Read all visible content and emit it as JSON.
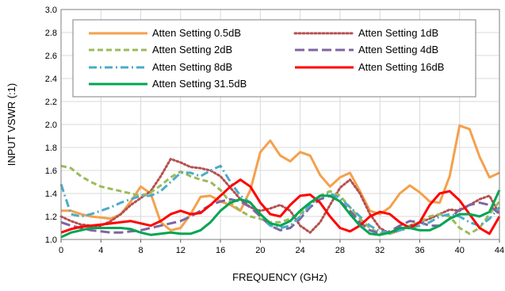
{
  "chart_data": {
    "type": "line",
    "title": "",
    "xlabel": "FREQUENCY (GHz)",
    "ylabel": "INPUT VSWR (:1)",
    "xlim": [
      0,
      44
    ],
    "ylim": [
      1.0,
      3.0
    ],
    "xticks": [
      "0",
      "4",
      "8",
      "12",
      "16",
      "20",
      "24",
      "28",
      "32",
      "36",
      "40",
      "44"
    ],
    "yticks": [
      "1.0",
      "1.2",
      "1.4",
      "1.6",
      "1.8",
      "2.0",
      "2.2",
      "2.4",
      "2.6",
      "2.8",
      "3.0"
    ],
    "grid": true,
    "legend_position": "top-center",
    "series": [
      {
        "name": "Atten Setting 0.5dB",
        "color": "#f5a04c",
        "dash": "solid",
        "x": [
          0,
          1,
          2,
          3,
          4,
          5,
          6,
          7,
          8,
          9,
          10,
          11,
          12,
          13,
          14,
          15,
          16,
          17,
          18,
          19,
          20,
          21,
          22,
          23,
          24,
          25,
          26,
          27,
          28,
          29,
          30,
          31,
          32,
          33,
          34,
          35,
          36,
          37,
          38,
          39,
          40,
          41,
          42,
          43,
          44
        ],
        "y": [
          1.25,
          1.25,
          1.22,
          1.2,
          1.19,
          1.18,
          1.22,
          1.33,
          1.46,
          1.4,
          1.15,
          1.08,
          1.1,
          1.22,
          1.37,
          1.38,
          1.33,
          1.3,
          1.25,
          1.43,
          1.76,
          1.86,
          1.73,
          1.68,
          1.76,
          1.73,
          1.56,
          1.46,
          1.54,
          1.58,
          1.42,
          1.25,
          1.22,
          1.28,
          1.4,
          1.47,
          1.41,
          1.33,
          1.32,
          1.55,
          1.99,
          1.96,
          1.72,
          1.54,
          1.58
        ]
      },
      {
        "name": "Atten Setting 1dB",
        "color": "#b5504f",
        "dash": "dotted",
        "x": [
          0,
          1,
          2,
          3,
          4,
          5,
          6,
          7,
          8,
          9,
          10,
          11,
          12,
          13,
          14,
          15,
          16,
          17,
          18,
          19,
          20,
          21,
          22,
          23,
          24,
          25,
          26,
          27,
          28,
          29,
          30,
          31,
          32,
          33,
          34,
          35,
          36,
          37,
          38,
          39,
          40,
          41,
          42,
          43,
          44
        ],
        "y": [
          1.2,
          1.16,
          1.13,
          1.12,
          1.12,
          1.16,
          1.22,
          1.3,
          1.36,
          1.42,
          1.55,
          1.7,
          1.67,
          1.63,
          1.62,
          1.6,
          1.55,
          1.45,
          1.35,
          1.28,
          1.25,
          1.27,
          1.3,
          1.25,
          1.12,
          1.06,
          1.15,
          1.3,
          1.45,
          1.52,
          1.4,
          1.22,
          1.1,
          1.05,
          1.08,
          1.12,
          1.15,
          1.18,
          1.22,
          1.26,
          1.25,
          1.3,
          1.35,
          1.38,
          1.22
        ]
      },
      {
        "name": "Atten Setting 2dB",
        "color": "#9bbb59",
        "dash": "dashed",
        "x": [
          0,
          1,
          2,
          3,
          4,
          5,
          6,
          7,
          8,
          9,
          10,
          11,
          12,
          13,
          14,
          15,
          16,
          17,
          18,
          19,
          20,
          21,
          22,
          23,
          24,
          25,
          26,
          27,
          28,
          29,
          30,
          31,
          32,
          33,
          34,
          35,
          36,
          37,
          38,
          39,
          40,
          41,
          42,
          43,
          44
        ],
        "y": [
          1.64,
          1.62,
          1.55,
          1.5,
          1.46,
          1.44,
          1.42,
          1.4,
          1.38,
          1.41,
          1.47,
          1.54,
          1.59,
          1.55,
          1.52,
          1.5,
          1.43,
          1.32,
          1.25,
          1.2,
          1.18,
          1.15,
          1.15,
          1.18,
          1.22,
          1.3,
          1.38,
          1.42,
          1.38,
          1.28,
          1.18,
          1.1,
          1.05,
          1.05,
          1.08,
          1.12,
          1.15,
          1.2,
          1.22,
          1.2,
          1.1,
          1.05,
          1.1,
          1.22,
          1.33
        ]
      },
      {
        "name": "Atten Setting 4dB",
        "color": "#8064a2",
        "dash": "longdash",
        "x": [
          0,
          1,
          2,
          3,
          4,
          5,
          6,
          7,
          8,
          9,
          10,
          11,
          12,
          13,
          14,
          15,
          16,
          17,
          18,
          19,
          20,
          21,
          22,
          23,
          24,
          25,
          26,
          27,
          28,
          29,
          30,
          31,
          32,
          33,
          34,
          35,
          36,
          37,
          38,
          39,
          40,
          41,
          42,
          43,
          44
        ],
        "y": [
          1.15,
          1.12,
          1.1,
          1.08,
          1.07,
          1.06,
          1.06,
          1.07,
          1.08,
          1.1,
          1.12,
          1.14,
          1.16,
          1.2,
          1.25,
          1.3,
          1.33,
          1.35,
          1.33,
          1.28,
          1.2,
          1.12,
          1.08,
          1.1,
          1.18,
          1.28,
          1.35,
          1.38,
          1.33,
          1.25,
          1.15,
          1.08,
          1.05,
          1.07,
          1.12,
          1.16,
          1.15,
          1.12,
          1.12,
          1.18,
          1.26,
          1.3,
          1.32,
          1.3,
          1.22
        ]
      },
      {
        "name": "Atten Setting 8dB",
        "color": "#4bacc6",
        "dash": "dashdot",
        "x": [
          0,
          1,
          2,
          3,
          4,
          5,
          6,
          7,
          8,
          9,
          10,
          11,
          12,
          13,
          14,
          15,
          16,
          17,
          18,
          19,
          20,
          21,
          22,
          23,
          24,
          25,
          26,
          27,
          28,
          29,
          30,
          31,
          32,
          33,
          34,
          35,
          36,
          37,
          38,
          39,
          40,
          41,
          42,
          43,
          44
        ],
        "y": [
          1.48,
          1.22,
          1.2,
          1.22,
          1.25,
          1.28,
          1.32,
          1.35,
          1.38,
          1.38,
          1.42,
          1.5,
          1.58,
          1.58,
          1.55,
          1.6,
          1.64,
          1.5,
          1.38,
          1.32,
          1.22,
          1.12,
          1.1,
          1.12,
          1.2,
          1.3,
          1.38,
          1.4,
          1.36,
          1.28,
          1.2,
          1.12,
          1.07,
          1.06,
          1.08,
          1.1,
          1.12,
          1.15,
          1.2,
          1.22,
          1.2,
          1.15,
          1.12,
          1.18,
          1.28
        ]
      },
      {
        "name": "Atten Setting 16dB",
        "color": "#ff0000",
        "dash": "solid",
        "x": [
          0,
          1,
          2,
          3,
          4,
          5,
          6,
          7,
          8,
          9,
          10,
          11,
          12,
          13,
          14,
          15,
          16,
          17,
          18,
          19,
          20,
          21,
          22,
          23,
          24,
          25,
          26,
          27,
          28,
          29,
          30,
          31,
          32,
          33,
          34,
          35,
          36,
          37,
          38,
          39,
          40,
          41,
          42,
          43,
          44
        ],
        "y": [
          1.06,
          1.09,
          1.11,
          1.12,
          1.13,
          1.14,
          1.15,
          1.16,
          1.14,
          1.12,
          1.16,
          1.22,
          1.25,
          1.22,
          1.23,
          1.3,
          1.38,
          1.46,
          1.52,
          1.46,
          1.32,
          1.22,
          1.2,
          1.3,
          1.38,
          1.39,
          1.32,
          1.2,
          1.1,
          1.07,
          1.12,
          1.2,
          1.24,
          1.22,
          1.15,
          1.1,
          1.15,
          1.3,
          1.4,
          1.42,
          1.34,
          1.22,
          1.1,
          1.05,
          1.2
        ]
      },
      {
        "name": "Atten Setting 31.5dB",
        "color": "#00a550",
        "dash": "solid",
        "x": [
          0,
          1,
          2,
          3,
          4,
          5,
          6,
          7,
          8,
          9,
          10,
          11,
          12,
          13,
          14,
          15,
          16,
          17,
          18,
          19,
          20,
          21,
          22,
          23,
          24,
          25,
          26,
          27,
          28,
          29,
          30,
          31,
          32,
          33,
          34,
          35,
          36,
          37,
          38,
          39,
          40,
          41,
          42,
          43,
          44
        ],
        "y": [
          1.02,
          1.06,
          1.08,
          1.1,
          1.1,
          1.1,
          1.1,
          1.09,
          1.06,
          1.04,
          1.05,
          1.06,
          1.05,
          1.05,
          1.08,
          1.15,
          1.25,
          1.32,
          1.35,
          1.32,
          1.22,
          1.14,
          1.12,
          1.16,
          1.25,
          1.32,
          1.38,
          1.38,
          1.33,
          1.22,
          1.12,
          1.05,
          1.04,
          1.06,
          1.1,
          1.1,
          1.08,
          1.08,
          1.12,
          1.18,
          1.22,
          1.22,
          1.2,
          1.24,
          1.43
        ]
      }
    ]
  }
}
